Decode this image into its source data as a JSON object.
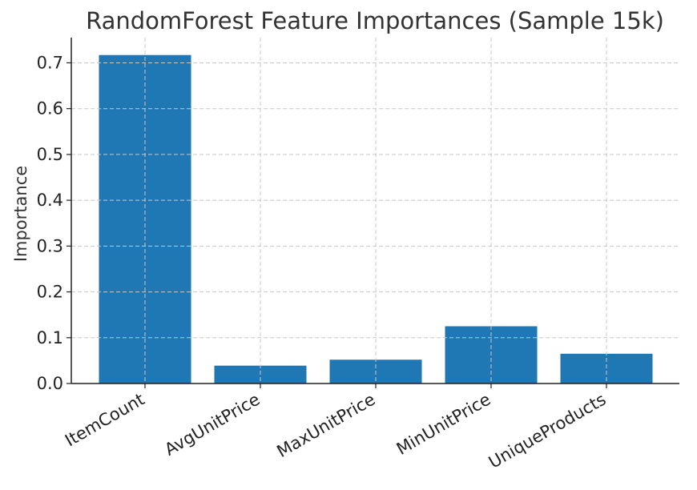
{
  "chart_data": {
    "type": "bar",
    "title": "RandomForest Feature Importances (Sample 15k)",
    "xlabel": "",
    "ylabel": "Importance",
    "categories": [
      "ItemCount",
      "AvgUnitPrice",
      "MaxUnitPrice",
      "MinUnitPrice",
      "UniqueProducts"
    ],
    "values": [
      0.717,
      0.039,
      0.052,
      0.125,
      0.065
    ],
    "ylim": [
      0,
      0.755
    ],
    "yticks": [
      0.0,
      0.1,
      0.2,
      0.3,
      0.4,
      0.5,
      0.6,
      0.7
    ],
    "ytick_labels": [
      "0.0",
      "0.1",
      "0.2",
      "0.3",
      "0.4",
      "0.5",
      "0.6",
      "0.7"
    ],
    "grid": true,
    "bar_color": "#1f77b4",
    "xtick_rotation_deg": 30
  }
}
